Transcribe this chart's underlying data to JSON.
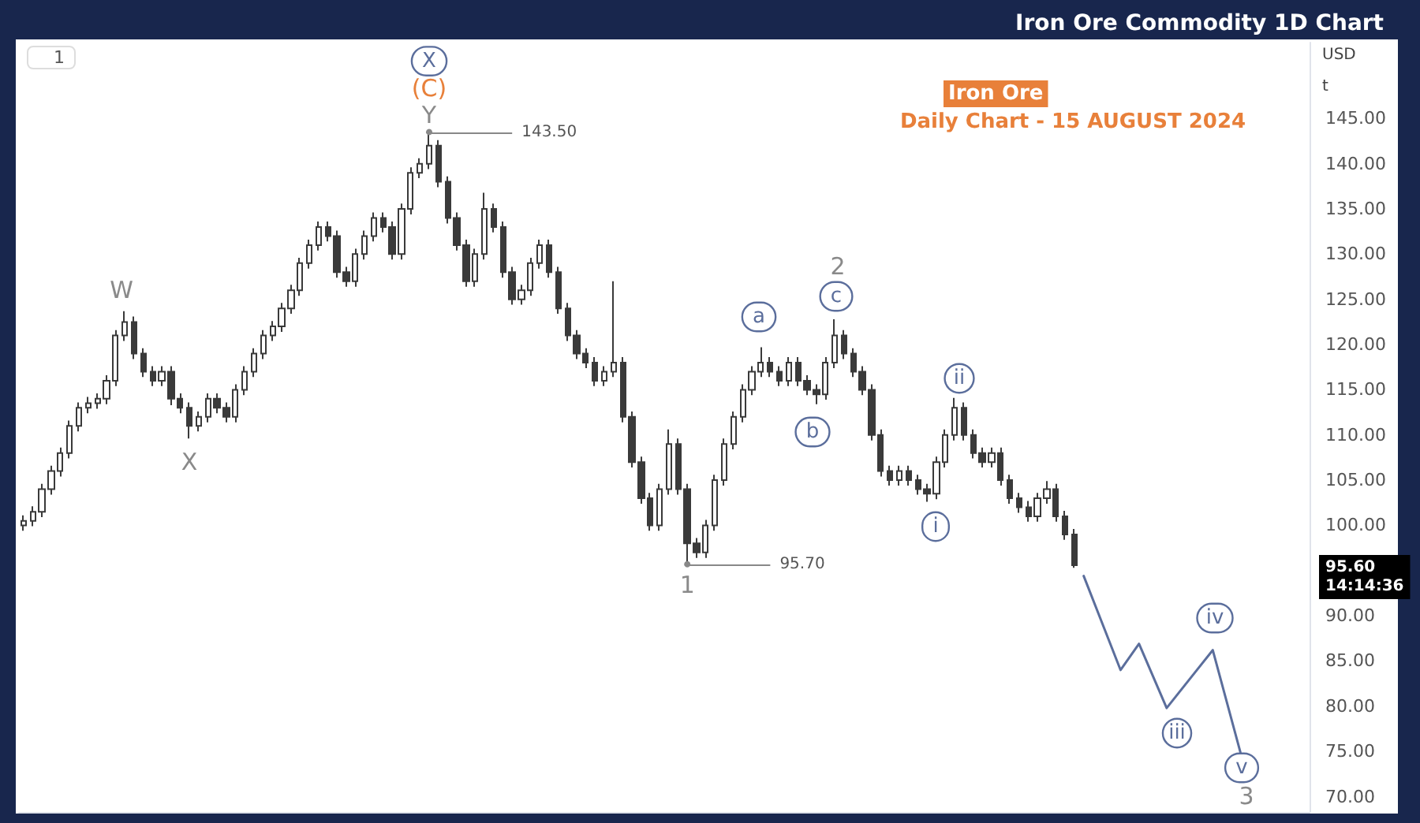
{
  "chart_data": {
    "type": "candlestick",
    "title": "Iron Ore Commodity 1D Chart",
    "subtitle": "Daily Chart - 15 AUGUST 2024",
    "categories": [
      null,
      null,
      null,
      null,
      null,
      null,
      null,
      null,
      null,
      null,
      null,
      null,
      null,
      null,
      null,
      null,
      null,
      null,
      null,
      null,
      null,
      null,
      null,
      null,
      null,
      null,
      null,
      null,
      null,
      null,
      null,
      null,
      null,
      null,
      null,
      null,
      null,
      null,
      null,
      null,
      null,
      null,
      null,
      null,
      null,
      null,
      null,
      null,
      null,
      null,
      null,
      null,
      null,
      null,
      null,
      null,
      null,
      null,
      null,
      null,
      null,
      null,
      null,
      null,
      null,
      null,
      null,
      null,
      null,
      null,
      null,
      null,
      null,
      null,
      null,
      null,
      null,
      null,
      null,
      null,
      null,
      null,
      null,
      null,
      null,
      null,
      null,
      null,
      null,
      null,
      null,
      null,
      null,
      null,
      null,
      null,
      null,
      null,
      null,
      null,
      null,
      null,
      null,
      null,
      null,
      null,
      null,
      null,
      null,
      null,
      null,
      null,
      null,
      null,
      null,
      null,
      null,
      null,
      null,
      null,
      null,
      null,
      null,
      null,
      null,
      null,
      null,
      null,
      null,
      null,
      null,
      null,
      null,
      null,
      null,
      null,
      null,
      null,
      null,
      null
    ],
    "color": "#3a3a3a",
    "ohlc": [
      [
        100,
        101.1,
        99.4,
        100.5
      ],
      [
        100.5,
        102.1,
        99.9,
        101.5
      ],
      [
        101.5,
        104.6,
        100.9,
        104
      ],
      [
        104,
        106.6,
        103.4,
        106
      ],
      [
        106,
        108.6,
        105.4,
        108
      ],
      [
        108,
        111.6,
        107.4,
        111
      ],
      [
        111,
        113.6,
        110.4,
        113
      ],
      [
        113,
        114.2,
        112.4,
        113.5
      ],
      [
        113.5,
        114.6,
        112.9,
        114
      ],
      [
        114,
        116.6,
        113.4,
        116
      ],
      [
        116,
        121.6,
        115.4,
        121
      ],
      [
        121,
        123.7,
        120.4,
        122.5
      ],
      [
        122.5,
        123.1,
        118.4,
        119
      ],
      [
        119,
        119.6,
        116.4,
        117
      ],
      [
        117,
        117.6,
        115.4,
        116
      ],
      [
        116,
        117.6,
        115.4,
        117
      ],
      [
        117,
        117.6,
        113.3,
        114
      ],
      [
        114,
        114.6,
        112.4,
        113
      ],
      [
        113,
        113.6,
        109.6,
        111
      ],
      [
        111,
        112.6,
        110.4,
        112
      ],
      [
        112,
        114.6,
        111.4,
        114
      ],
      [
        114,
        114.6,
        112.4,
        113
      ],
      [
        113,
        113.6,
        111.4,
        112
      ],
      [
        112,
        115.6,
        111.4,
        115
      ],
      [
        115,
        117.6,
        114.4,
        117
      ],
      [
        117,
        119.6,
        116.4,
        119
      ],
      [
        119,
        121.6,
        118.4,
        121
      ],
      [
        121,
        122.6,
        120.4,
        122
      ],
      [
        122,
        124.6,
        121.4,
        124
      ],
      [
        124,
        126.6,
        123.4,
        126
      ],
      [
        126,
        129.6,
        125.4,
        129
      ],
      [
        129,
        131.6,
        128.4,
        131
      ],
      [
        131,
        133.6,
        130.4,
        133
      ],
      [
        133,
        133.6,
        131.4,
        132
      ],
      [
        132,
        132.6,
        127.4,
        128
      ],
      [
        128,
        128.6,
        126.4,
        127
      ],
      [
        127,
        130.6,
        126.4,
        130
      ],
      [
        130,
        132.6,
        129.4,
        132
      ],
      [
        132,
        134.6,
        131.4,
        134
      ],
      [
        134,
        134.6,
        132.4,
        133
      ],
      [
        133,
        133.6,
        129.4,
        130
      ],
      [
        130,
        135.6,
        129.4,
        135
      ],
      [
        135,
        139.6,
        134.4,
        139
      ],
      [
        139,
        140.6,
        138.4,
        140
      ],
      [
        140,
        143.5,
        139.4,
        142
      ],
      [
        142,
        142.6,
        137.4,
        138
      ],
      [
        138,
        138.6,
        133.4,
        134
      ],
      [
        134,
        134.6,
        130.4,
        131
      ],
      [
        131,
        131.6,
        126.4,
        127
      ],
      [
        127,
        130.6,
        126.4,
        130
      ],
      [
        130,
        136.8,
        129.4,
        135
      ],
      [
        135,
        135.6,
        132.4,
        133
      ],
      [
        133,
        133.6,
        127.4,
        128
      ],
      [
        128,
        128.6,
        124.4,
        125
      ],
      [
        125,
        126.6,
        124.4,
        126
      ],
      [
        126,
        129.6,
        125.4,
        129
      ],
      [
        129,
        131.6,
        128.4,
        131
      ],
      [
        131,
        131.6,
        127.4,
        128
      ],
      [
        128,
        128.6,
        123.4,
        124
      ],
      [
        124,
        124.6,
        120.4,
        121
      ],
      [
        121,
        121.6,
        118.4,
        119
      ],
      [
        119,
        119.6,
        117.4,
        118
      ],
      [
        118,
        118.6,
        115.4,
        116
      ],
      [
        116,
        117.6,
        115.4,
        117
      ],
      [
        117,
        127,
        116.4,
        118
      ],
      [
        118,
        118.6,
        111.4,
        112
      ],
      [
        112,
        112.6,
        106.4,
        107
      ],
      [
        107,
        107.6,
        102.4,
        103
      ],
      [
        103,
        103.6,
        99.4,
        100
      ],
      [
        100,
        104.6,
        99.4,
        104
      ],
      [
        104,
        110.6,
        103.4,
        109
      ],
      [
        109,
        109.6,
        103.4,
        104
      ],
      [
        104,
        104.6,
        95.7,
        98
      ],
      [
        98,
        98.6,
        96.4,
        97
      ],
      [
        97,
        100.6,
        96.4,
        100
      ],
      [
        100,
        105.6,
        99.4,
        105
      ],
      [
        105,
        109.6,
        104.4,
        109
      ],
      [
        109,
        112.6,
        108.4,
        112
      ],
      [
        112,
        115.6,
        111.4,
        115
      ],
      [
        115,
        117.6,
        114.4,
        117
      ],
      [
        117,
        119.7,
        116.4,
        118
      ],
      [
        118,
        118.6,
        116.4,
        117
      ],
      [
        117,
        117.6,
        115.4,
        116
      ],
      [
        116,
        118.6,
        115.4,
        118
      ],
      [
        118,
        118.6,
        115.4,
        116
      ],
      [
        116,
        116.6,
        114.4,
        115
      ],
      [
        115,
        115.6,
        113.4,
        114.5
      ],
      [
        114.5,
        118.6,
        113.9,
        118
      ],
      [
        118,
        122.8,
        117.4,
        121
      ],
      [
        121,
        121.6,
        118.4,
        119
      ],
      [
        119,
        119.6,
        116.4,
        117
      ],
      [
        117,
        117.6,
        114.4,
        115
      ],
      [
        115,
        115.6,
        109.4,
        110
      ],
      [
        110,
        110.6,
        105.4,
        106
      ],
      [
        106,
        106.6,
        104.4,
        105
      ],
      [
        105,
        106.6,
        104.4,
        106
      ],
      [
        106,
        106.6,
        104.4,
        105
      ],
      [
        105,
        105.6,
        103.4,
        104
      ],
      [
        104,
        104.6,
        102.6,
        103.5
      ],
      [
        103.5,
        107.6,
        102.9,
        107
      ],
      [
        107,
        110.6,
        106.4,
        110
      ],
      [
        110,
        114.1,
        109.4,
        113
      ],
      [
        113,
        113.6,
        109.4,
        110
      ],
      [
        110,
        110.6,
        107.4,
        108
      ],
      [
        108,
        108.6,
        106.4,
        107
      ],
      [
        107,
        108.6,
        106.4,
        108
      ],
      [
        108,
        108.6,
        104.4,
        105
      ],
      [
        105,
        105.6,
        102.4,
        103
      ],
      [
        103,
        103.6,
        101.4,
        102
      ],
      [
        102,
        102.7,
        100.4,
        101
      ],
      [
        101,
        103.6,
        100.4,
        103
      ],
      [
        103,
        104.9,
        102.4,
        104
      ],
      [
        104,
        104.6,
        100.4,
        101
      ],
      [
        101,
        101.6,
        98.4,
        99
      ],
      [
        99,
        99.6,
        95.3,
        95.6
      ],
      null,
      null,
      null,
      null,
      null,
      null,
      null,
      null,
      null,
      null,
      null,
      null,
      null,
      null,
      null,
      null,
      null,
      null,
      null,
      null,
      null,
      null,
      null,
      null,
      null
    ],
    "series": [
      {
        "type": "line",
        "color": "#5b6e9c",
        "values": [
          null,
          null,
          null,
          null,
          null,
          null,
          null,
          null,
          null,
          null,
          null,
          null,
          null,
          null,
          null,
          null,
          null,
          null,
          null,
          null,
          null,
          null,
          null,
          null,
          null,
          null,
          null,
          null,
          null,
          null,
          null,
          null,
          null,
          null,
          null,
          null,
          null,
          null,
          null,
          null,
          null,
          null,
          null,
          null,
          null,
          null,
          null,
          null,
          null,
          null,
          null,
          null,
          null,
          null,
          null,
          null,
          null,
          null,
          null,
          null,
          null,
          null,
          null,
          null,
          null,
          null,
          null,
          null,
          null,
          null,
          null,
          null,
          null,
          null,
          null,
          null,
          null,
          null,
          null,
          null,
          null,
          null,
          null,
          null,
          null,
          null,
          null,
          null,
          null,
          null,
          null,
          null,
          null,
          null,
          null,
          null,
          null,
          null,
          null,
          null,
          null,
          null,
          null,
          null,
          null,
          null,
          null,
          null,
          null,
          null,
          null,
          null,
          null,
          null,
          null,
          94.4,
          null,
          null,
          null,
          84,
          null,
          86.9,
          null,
          null,
          79.8,
          null,
          null,
          null,
          null,
          86.2,
          null,
          null,
          74.9,
          null,
          null,
          null,
          null,
          null,
          null,
          null
        ]
      }
    ],
    "line_style": "solid",
    "ylim": [
      68.3,
      153.4
    ],
    "yticks": [
      {
        "value": 70,
        "label": "70.00"
      },
      {
        "value": 75,
        "label": "75.00"
      },
      {
        "value": 80,
        "label": "80.00"
      },
      {
        "value": 85,
        "label": "85.00"
      },
      {
        "value": 90,
        "label": "90.00"
      },
      {
        "value": 100,
        "label": "100.00"
      },
      {
        "value": 105,
        "label": "105.00"
      },
      {
        "value": 110,
        "label": "110.00"
      },
      {
        "value": 115,
        "label": "115.00"
      },
      {
        "value": 120,
        "label": "120.00"
      },
      {
        "value": 125,
        "label": "125.00"
      },
      {
        "value": 130,
        "label": "130.00"
      },
      {
        "value": 135,
        "label": "135.00"
      },
      {
        "value": 140,
        "label": "140.00"
      },
      {
        "value": 145,
        "label": "145.00"
      }
    ],
    "tick_labels": "y",
    "ref_lines": [
      {
        "axis": "y",
        "value": 143.5,
        "label": "143.50"
      },
      {
        "axis": "y",
        "value": 95.7,
        "label": "95.70"
      }
    ],
    "annotations": [
      "Iron Ore",
      "1",
      "USD",
      "t",
      "W",
      "X",
      {
        "text": "Y",
        "y": 143.5
      },
      {
        "text": "(C)",
        "y": 143.5
      },
      {
        "text": "X",
        "y": 143.5
      },
      {
        "text": "1",
        "y": 95.7
      },
      "a",
      "b",
      "c",
      "2",
      "i",
      "ii",
      "iii",
      "iv",
      "v",
      "3",
      "95.60\n14:14:36"
    ]
  }
}
